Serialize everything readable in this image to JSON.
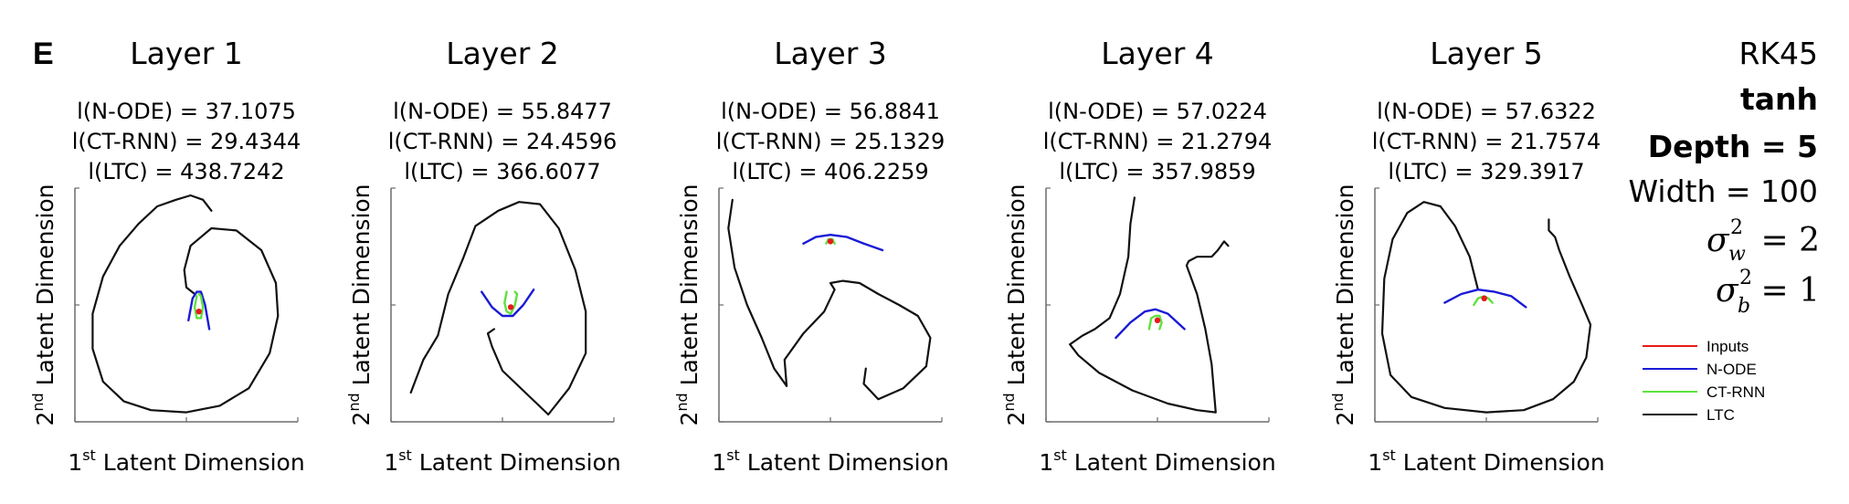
{
  "panel_label": "E",
  "side_info": {
    "solver": "RK45",
    "activation": "tanh",
    "depth": "Depth = 5",
    "width": "Width = 100",
    "sigma_w_value": "= 2",
    "sigma_b_value": "= 1",
    "sigma_symbol": "σ",
    "sigma_w_sub": "w",
    "sigma_b_sub": "b",
    "sigma_sup": "2"
  },
  "axis_labels": {
    "x_prefix": "1",
    "x_sup": "st",
    "x_rest": " Latent Dimension",
    "y_prefix": "2",
    "y_sup": "nd",
    "y_rest": " Latent Dimension"
  },
  "legend": [
    {
      "label": "Inputs",
      "color": "#e8191c"
    },
    {
      "label": "N-ODE",
      "color": "#1a1ad6"
    },
    {
      "label": "CT-RNN",
      "color": "#5ee23e"
    },
    {
      "label": "LTC",
      "color": "#111111"
    }
  ],
  "chart_data": [
    {
      "type": "line",
      "title": "Layer 1",
      "metrics": [
        "l(N-ODE) = 37.1075",
        "l(CT-RNN) = 29.4344",
        "l(LTC) = 438.7242"
      ],
      "trajectory_lengths": {
        "N-ODE": 37.1075,
        "CT-RNN": 29.4344,
        "LTC": 438.7242
      },
      "xlim": [
        0,
        1
      ],
      "ylim": [
        0,
        1
      ],
      "grid": false,
      "series": [
        {
          "name": "LTC",
          "x": [
            0.62,
            0.58,
            0.52,
            0.45,
            0.36,
            0.27,
            0.18,
            0.1,
            0.05,
            0.05,
            0.1,
            0.2,
            0.33,
            0.5,
            0.66,
            0.8,
            0.9,
            0.94,
            0.93,
            0.86,
            0.74,
            0.62,
            0.52,
            0.49,
            0.5,
            0.54
          ],
          "y": [
            0.93,
            0.98,
            1.0,
            0.98,
            0.95,
            0.87,
            0.77,
            0.63,
            0.46,
            0.3,
            0.15,
            0.06,
            0.02,
            0.01,
            0.04,
            0.12,
            0.28,
            0.45,
            0.6,
            0.75,
            0.84,
            0.85,
            0.77,
            0.66,
            0.58,
            0.55
          ]
        },
        {
          "name": "N-ODE",
          "x": [
            0.51,
            0.53,
            0.55,
            0.57,
            0.59,
            0.61
          ],
          "y": [
            0.43,
            0.53,
            0.56,
            0.56,
            0.5,
            0.39
          ]
        },
        {
          "name": "CT-RNN",
          "x": [
            0.55,
            0.54,
            0.55,
            0.57,
            0.58,
            0.57,
            0.56
          ],
          "y": [
            0.54,
            0.49,
            0.44,
            0.44,
            0.49,
            0.54,
            0.55
          ]
        },
        {
          "name": "Inputs",
          "x": [
            0.56
          ],
          "y": [
            0.47
          ]
        }
      ]
    },
    {
      "type": "line",
      "title": "Layer 2",
      "metrics": [
        "l(N-ODE) = 55.8477",
        "l(CT-RNN) = 24.4596",
        "l(LTC) = 366.6077"
      ],
      "trajectory_lengths": {
        "N-ODE": 55.8477,
        "CT-RNN": 24.4596,
        "LTC": 366.6077
      },
      "xlim": [
        0,
        1
      ],
      "ylim": [
        0,
        1
      ],
      "grid": false,
      "series": [
        {
          "name": "LTC",
          "x": [
            0.06,
            0.12,
            0.19,
            0.24,
            0.31,
            0.37,
            0.48,
            0.58,
            0.68,
            0.77,
            0.85,
            0.9,
            0.9,
            0.82,
            0.72,
            0.61,
            0.5,
            0.45,
            0.43,
            0.46
          ],
          "y": [
            0.1,
            0.25,
            0.36,
            0.55,
            0.71,
            0.86,
            0.93,
            0.97,
            0.96,
            0.85,
            0.66,
            0.47,
            0.28,
            0.12,
            0.0,
            0.1,
            0.2,
            0.31,
            0.37,
            0.39
          ]
        },
        {
          "name": "N-ODE",
          "x": [
            0.4,
            0.45,
            0.5,
            0.55,
            0.6,
            0.65
          ],
          "y": [
            0.56,
            0.49,
            0.45,
            0.45,
            0.5,
            0.57
          ]
        },
        {
          "name": "CT-RNN",
          "x": [
            0.52,
            0.51,
            0.52,
            0.54,
            0.56,
            0.57,
            0.56
          ],
          "y": [
            0.56,
            0.51,
            0.47,
            0.46,
            0.5,
            0.55,
            0.56
          ]
        },
        {
          "name": "Inputs",
          "x": [
            0.54
          ],
          "y": [
            0.49
          ]
        }
      ]
    },
    {
      "type": "line",
      "title": "Layer 3",
      "metrics": [
        "l(N-ODE) = 56.8841",
        "l(CT-RNN) = 25.1329",
        "l(LTC) = 406.2259"
      ],
      "trajectory_lengths": {
        "N-ODE": 56.8841,
        "CT-RNN": 25.1329,
        "LTC": 406.2259
      },
      "xlim": [
        0,
        1
      ],
      "ylim": [
        0,
        1
      ],
      "grid": false,
      "series": [
        {
          "name": "LTC",
          "x": [
            0.03,
            0.01,
            0.04,
            0.1,
            0.17,
            0.23,
            0.29,
            0.28,
            0.37,
            0.47,
            0.52,
            0.5,
            0.56,
            0.64,
            0.73,
            0.83,
            0.92,
            0.98,
            0.96,
            0.85,
            0.73,
            0.66,
            0.67
          ],
          "y": [
            0.98,
            0.85,
            0.67,
            0.5,
            0.35,
            0.21,
            0.13,
            0.25,
            0.37,
            0.47,
            0.57,
            0.6,
            0.61,
            0.6,
            0.55,
            0.5,
            0.45,
            0.35,
            0.22,
            0.12,
            0.07,
            0.14,
            0.21
          ]
        },
        {
          "name": "N-ODE",
          "x": [
            0.37,
            0.43,
            0.5,
            0.58,
            0.66,
            0.75
          ],
          "y": [
            0.78,
            0.81,
            0.82,
            0.81,
            0.78,
            0.75
          ]
        },
        {
          "name": "CT-RNN",
          "x": [
            0.48,
            0.49,
            0.5,
            0.51,
            0.52
          ],
          "y": [
            0.78,
            0.8,
            0.8,
            0.8,
            0.78
          ]
        },
        {
          "name": "Inputs",
          "x": [
            0.5
          ],
          "y": [
            0.79
          ]
        }
      ]
    },
    {
      "type": "line",
      "title": "Layer 4",
      "metrics": [
        "l(N-ODE) = 57.0224",
        "l(CT-RNN) = 21.2794",
        "l(LTC) = 357.9859"
      ],
      "trajectory_lengths": {
        "N-ODE": 57.0224,
        "CT-RNN": 21.2794,
        "LTC": 357.9859
      },
      "xlim": [
        0,
        1
      ],
      "ylim": [
        0,
        1
      ],
      "grid": false,
      "series": [
        {
          "name": "LTC",
          "x": [
            0.39,
            0.37,
            0.36,
            0.32,
            0.27,
            0.2,
            0.14,
            0.11,
            0.08,
            0.12,
            0.22,
            0.38,
            0.55,
            0.69,
            0.78,
            0.76,
            0.73,
            0.69,
            0.64,
            0.65,
            0.69,
            0.72,
            0.76,
            0.79,
            0.82,
            0.84
          ],
          "y": [
            0.99,
            0.87,
            0.72,
            0.55,
            0.44,
            0.39,
            0.36,
            0.34,
            0.32,
            0.27,
            0.19,
            0.11,
            0.05,
            0.02,
            0.01,
            0.23,
            0.39,
            0.55,
            0.68,
            0.7,
            0.72,
            0.72,
            0.72,
            0.75,
            0.79,
            0.77
          ]
        },
        {
          "name": "N-ODE",
          "x": [
            0.3,
            0.37,
            0.44,
            0.49,
            0.55,
            0.63
          ],
          "y": [
            0.35,
            0.42,
            0.47,
            0.48,
            0.46,
            0.39
          ]
        },
        {
          "name": "CT-RNN",
          "x": [
            0.46,
            0.47,
            0.49,
            0.51,
            0.52,
            0.51
          ],
          "y": [
            0.39,
            0.44,
            0.45,
            0.45,
            0.42,
            0.39
          ]
        },
        {
          "name": "Inputs",
          "x": [
            0.5
          ],
          "y": [
            0.43
          ]
        }
      ]
    },
    {
      "type": "line",
      "title": "Layer 5",
      "metrics": [
        "l(N-ODE) = 57.6322",
        "l(CT-RNN) = 21.7574",
        "l(LTC) = 329.3917"
      ],
      "trajectory_lengths": {
        "N-ODE": 57.6322,
        "CT-RNN": 21.7574,
        "LTC": 329.3917
      },
      "xlim": [
        0,
        1
      ],
      "ylim": [
        0,
        1
      ],
      "grid": false,
      "series": [
        {
          "name": "LTC",
          "x": [
            0.46,
            0.42,
            0.35,
            0.28,
            0.2,
            0.12,
            0.05,
            0.01,
            0.0,
            0.04,
            0.14,
            0.3,
            0.5,
            0.68,
            0.82,
            0.92,
            0.98,
            1.0,
            0.96,
            0.9,
            0.85,
            0.83,
            0.8,
            0.8
          ],
          "y": [
            0.57,
            0.72,
            0.86,
            0.95,
            0.97,
            0.92,
            0.8,
            0.62,
            0.37,
            0.18,
            0.08,
            0.03,
            0.01,
            0.02,
            0.07,
            0.15,
            0.26,
            0.41,
            0.5,
            0.63,
            0.75,
            0.81,
            0.84,
            0.89
          ]
        },
        {
          "name": "N-ODE",
          "x": [
            0.3,
            0.38,
            0.46,
            0.54,
            0.62,
            0.69
          ],
          "y": [
            0.51,
            0.55,
            0.57,
            0.56,
            0.54,
            0.49
          ]
        },
        {
          "name": "CT-RNN",
          "x": [
            0.44,
            0.46,
            0.49,
            0.51,
            0.53
          ],
          "y": [
            0.5,
            0.53,
            0.54,
            0.53,
            0.51
          ]
        },
        {
          "name": "Inputs",
          "x": [
            0.49
          ],
          "y": [
            0.53
          ]
        }
      ]
    }
  ]
}
